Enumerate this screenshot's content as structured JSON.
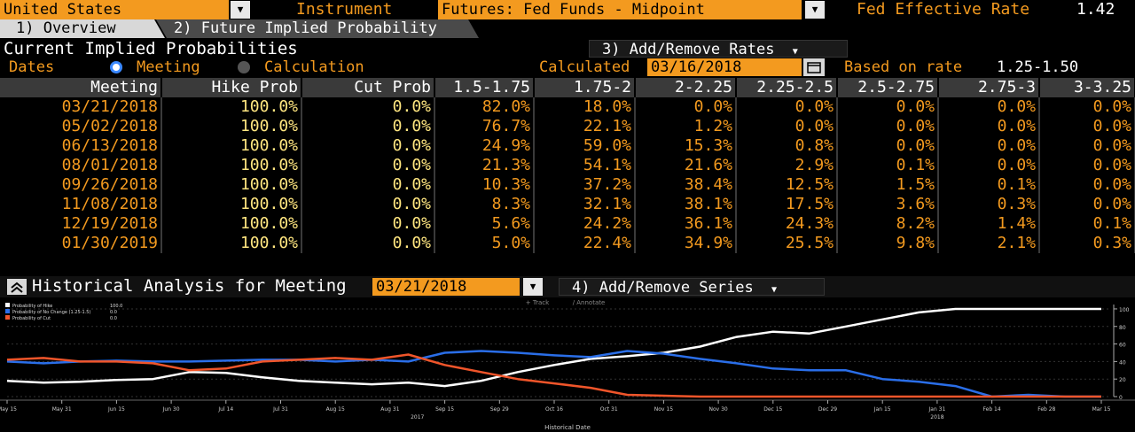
{
  "header": {
    "country": "United States",
    "instrument_label": "Instrument",
    "instrument_value": "Futures: Fed Funds - Midpoint",
    "fed_rate_label": "Fed Effective Rate",
    "fed_rate_value": "1.42"
  },
  "tabs": [
    {
      "label": "1) Overview"
    },
    {
      "label": "2) Future Implied Probability"
    }
  ],
  "current": {
    "title": "Current Implied Probabilities",
    "add_remove_rates": "3) Add/Remove Rates",
    "dates_label": "Dates",
    "meeting_label": "Meeting",
    "calculation_label": "Calculation",
    "calculated_label": "Calculated",
    "calculated_date": "03/16/2018",
    "based_on_label": "Based on rate",
    "based_on_value": "1.25-1.50"
  },
  "table": {
    "headers": [
      "Meeting",
      "Hike Prob",
      "Cut Prob",
      "1.5-1.75",
      "1.75-2",
      "2-2.25",
      "2.25-2.5",
      "2.5-2.75",
      "2.75-3",
      "3-3.25"
    ],
    "rows": [
      [
        "03/21/2018",
        "100.0%",
        "0.0%",
        "82.0%",
        "18.0%",
        "0.0%",
        "0.0%",
        "0.0%",
        "0.0%",
        "0.0%"
      ],
      [
        "05/02/2018",
        "100.0%",
        "0.0%",
        "76.7%",
        "22.1%",
        "1.2%",
        "0.0%",
        "0.0%",
        "0.0%",
        "0.0%"
      ],
      [
        "06/13/2018",
        "100.0%",
        "0.0%",
        "24.9%",
        "59.0%",
        "15.3%",
        "0.8%",
        "0.0%",
        "0.0%",
        "0.0%"
      ],
      [
        "08/01/2018",
        "100.0%",
        "0.0%",
        "21.3%",
        "54.1%",
        "21.6%",
        "2.9%",
        "0.1%",
        "0.0%",
        "0.0%"
      ],
      [
        "09/26/2018",
        "100.0%",
        "0.0%",
        "10.3%",
        "37.2%",
        "38.4%",
        "12.5%",
        "1.5%",
        "0.1%",
        "0.0%"
      ],
      [
        "11/08/2018",
        "100.0%",
        "0.0%",
        "8.3%",
        "32.1%",
        "38.1%",
        "17.5%",
        "3.6%",
        "0.3%",
        "0.0%"
      ],
      [
        "12/19/2018",
        "100.0%",
        "0.0%",
        "5.6%",
        "24.2%",
        "36.1%",
        "24.3%",
        "8.2%",
        "1.4%",
        "0.1%"
      ],
      [
        "01/30/2019",
        "100.0%",
        "0.0%",
        "5.0%",
        "22.4%",
        "34.9%",
        "25.5%",
        "9.8%",
        "2.1%",
        "0.3%"
      ]
    ]
  },
  "historical": {
    "title": "Historical Analysis for Meeting",
    "meeting_date": "03/21/2018",
    "add_remove_series": "4) Add/Remove Series",
    "track_label": "Track",
    "annotate_label": "Annotate"
  },
  "chart_data": {
    "type": "line",
    "xlabel": "Historical Date",
    "year_labels": [
      "2017",
      "2018"
    ],
    "x_ticks": [
      "May 15",
      "May 31",
      "Jun 15",
      "Jun 30",
      "Jul 14",
      "Jul 31",
      "Aug 15",
      "Aug 31",
      "Sep 15",
      "Sep 29",
      "Oct 16",
      "Oct 31",
      "Nov 15",
      "Nov 30",
      "Dec 15",
      "Dec 29",
      "Jan 15",
      "Jan 31",
      "Feb 14",
      "Feb 28",
      "Mar 15"
    ],
    "y_ticks": [
      "100",
      "80",
      "60",
      "40",
      "20",
      "0"
    ],
    "ylim": [
      0,
      105
    ],
    "legend": [
      {
        "name": "Probability of Hike",
        "value": "100.0",
        "color": "#ffffff"
      },
      {
        "name": "Probability of No Change (1.25-1.5)",
        "value": "0.0",
        "color": "#2a6ee8"
      },
      {
        "name": "Probability of Cut",
        "value": "0.0",
        "color": "#f0552a"
      }
    ],
    "series": [
      {
        "name": "Probability of Hike",
        "color": "#ffffff",
        "values": [
          18,
          16,
          17,
          19,
          20,
          28,
          27,
          22,
          18,
          16,
          14,
          16,
          12,
          18,
          28,
          36,
          43,
          46,
          50,
          57,
          68,
          74,
          72,
          80,
          88,
          96,
          100,
          100,
          100,
          100,
          100
        ]
      },
      {
        "name": "Probability of No Change (1.25-1.5)",
        "color": "#2a6ee8",
        "values": [
          40,
          38,
          40,
          41,
          40,
          40,
          41,
          42,
          42,
          40,
          42,
          40,
          50,
          52,
          50,
          47,
          45,
          52,
          49,
          43,
          38,
          32,
          30,
          30,
          20,
          17,
          12,
          0,
          2,
          0,
          0
        ]
      },
      {
        "name": "Probability of Cut",
        "color": "#f0552a",
        "values": [
          42,
          44,
          40,
          40,
          38,
          30,
          32,
          40,
          42,
          44,
          42,
          48,
          36,
          28,
          20,
          15,
          10,
          2,
          1,
          0,
          0,
          0,
          0,
          0,
          0,
          0,
          0,
          0,
          0,
          0,
          0
        ]
      }
    ]
  }
}
